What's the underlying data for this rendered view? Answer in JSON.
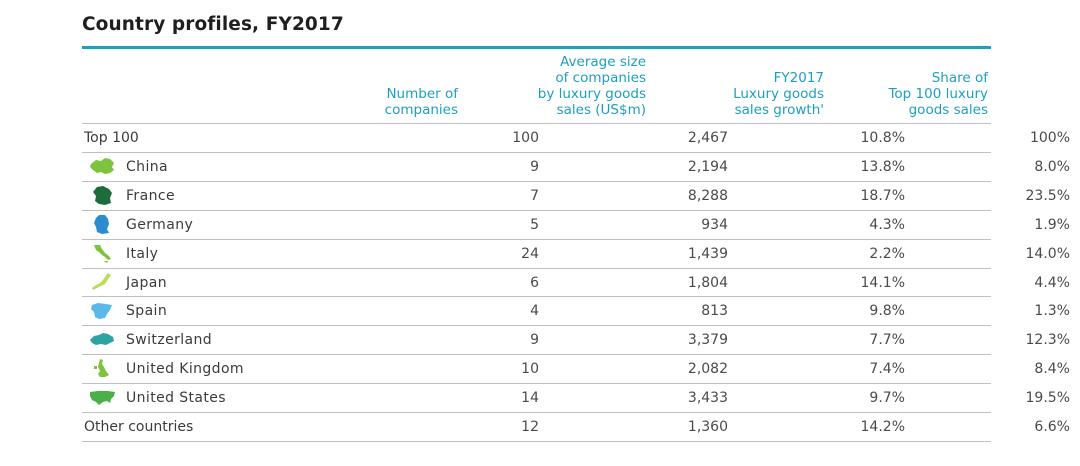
{
  "title": "Country profiles, FY2017",
  "headers": {
    "col1": [
      "Number of",
      "companies"
    ],
    "col2": [
      "Average size",
      "of companies",
      "by luxury goods",
      "sales (US$m)"
    ],
    "col3": [
      "FY2017",
      "Luxury goods",
      "sales growth'"
    ],
    "col4": [
      "Share of",
      "Top 100 luxury",
      "goods sales"
    ]
  },
  "colors": {
    "accent": "#16a4c6",
    "map_green_dark": "#1e6b3c",
    "map_green": "#7ec33d",
    "map_blue": "#2d8bd0",
    "map_lightblue": "#5cb8e6",
    "map_teal": "#2ea3a5"
  },
  "rows": [
    {
      "name": "Top 100",
      "icon": null,
      "count": "100",
      "avg_size": "2,467",
      "growth": "10.8%",
      "share": "100%"
    },
    {
      "name": "China",
      "icon": "china-map-icon",
      "count": "9",
      "avg_size": "2,194",
      "growth": "13.8%",
      "share": "8.0%"
    },
    {
      "name": "France",
      "icon": "france-map-icon",
      "count": "7",
      "avg_size": "8,288",
      "growth": "18.7%",
      "share": "23.5%"
    },
    {
      "name": "Germany",
      "icon": "germany-map-icon",
      "count": "5",
      "avg_size": "934",
      "growth": "4.3%",
      "share": "1.9%"
    },
    {
      "name": "Italy",
      "icon": "italy-map-icon",
      "count": "24",
      "avg_size": "1,439",
      "growth": "2.2%",
      "share": "14.0%"
    },
    {
      "name": "Japan",
      "icon": "japan-map-icon",
      "count": "6",
      "avg_size": "1,804",
      "growth": "14.1%",
      "share": "4.4%"
    },
    {
      "name": "Spain",
      "icon": "spain-map-icon",
      "count": "4",
      "avg_size": "813",
      "growth": "9.8%",
      "share": "1.3%"
    },
    {
      "name": "Switzerland",
      "icon": "switzerland-map-icon",
      "count": "9",
      "avg_size": "3,379",
      "growth": "7.7%",
      "share": "12.3%"
    },
    {
      "name": "United Kingdom",
      "icon": "uk-map-icon",
      "count": "10",
      "avg_size": "2,082",
      "growth": "7.4%",
      "share": "8.4%"
    },
    {
      "name": "United States",
      "icon": "us-map-icon",
      "count": "14",
      "avg_size": "3,433",
      "growth": "9.7%",
      "share": "19.5%"
    },
    {
      "name": "Other countries",
      "icon": null,
      "count": "12",
      "avg_size": "1,360",
      "growth": "14.2%",
      "share": "6.6%"
    }
  ]
}
